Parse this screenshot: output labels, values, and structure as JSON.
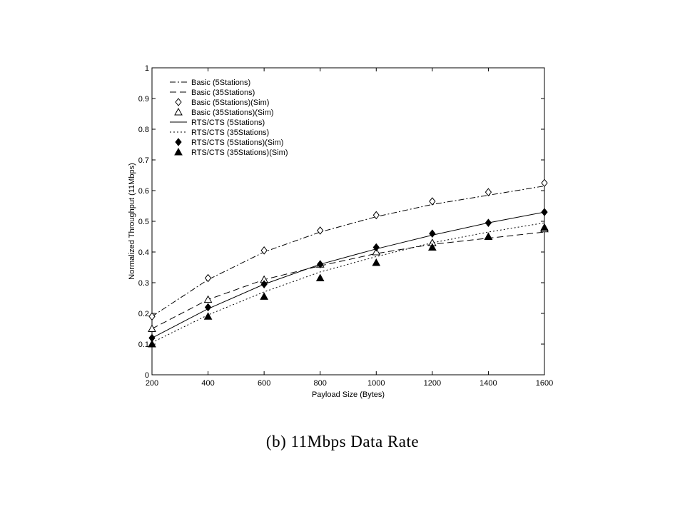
{
  "caption": "(b) 11Mbps Data Rate",
  "chart_data": {
    "type": "line",
    "title": "",
    "xlabel": "Payload Size (Bytes)",
    "ylabel": "Normalized Throughput (11Mbps)",
    "xlim": [
      200,
      1600
    ],
    "ylim": [
      0,
      1
    ],
    "x_ticks": [
      "200",
      "400",
      "600",
      "800",
      "1000",
      "1200",
      "1400",
      "1600"
    ],
    "y_ticks": [
      "0",
      "0.1",
      "0.2",
      "0.3",
      "0.4",
      "0.5",
      "0.6",
      "0.7",
      "0.8",
      "0.9",
      "1"
    ],
    "grid": false,
    "legend_position": "top-left",
    "x": [
      200,
      400,
      600,
      800,
      1000,
      1200,
      1400,
      1600
    ],
    "series": [
      {
        "name": "Basic (5Stations)",
        "style": "dashdot",
        "marker": "none",
        "values": [
          0.19,
          0.31,
          0.4,
          0.465,
          0.515,
          0.555,
          0.585,
          0.615
        ]
      },
      {
        "name": "Basic (35Stations)",
        "style": "dashed",
        "marker": "none",
        "values": [
          0.15,
          0.245,
          0.31,
          0.355,
          0.395,
          0.425,
          0.445,
          0.465
        ]
      },
      {
        "name": "Basic (5Stations)(Sim)",
        "style": "none",
        "marker": "open-diamond",
        "values": [
          0.19,
          0.315,
          0.405,
          0.47,
          0.52,
          0.565,
          0.595,
          0.625
        ]
      },
      {
        "name": "Basic (35Stations)(Sim)",
        "style": "none",
        "marker": "open-triangle",
        "values": [
          0.15,
          0.245,
          0.31,
          0.36,
          0.4,
          0.43,
          0.45,
          0.475
        ]
      },
      {
        "name": "RTS/CTS (5Stations)",
        "style": "solid",
        "marker": "none",
        "values": [
          0.12,
          0.215,
          0.295,
          0.36,
          0.41,
          0.455,
          0.495,
          0.53
        ]
      },
      {
        "name": "RTS/CTS (35Stations)",
        "style": "dotted",
        "marker": "none",
        "values": [
          0.105,
          0.195,
          0.27,
          0.335,
          0.385,
          0.43,
          0.465,
          0.495
        ]
      },
      {
        "name": "RTS/CTS (5Stations)(Sim)",
        "style": "none",
        "marker": "filled-diamond",
        "values": [
          0.12,
          0.22,
          0.295,
          0.36,
          0.415,
          0.46,
          0.495,
          0.53
        ]
      },
      {
        "name": "RTS/CTS (35Stations)(Sim)",
        "style": "none",
        "marker": "filled-triangle",
        "values": [
          0.1,
          0.19,
          0.255,
          0.315,
          0.365,
          0.415,
          0.45,
          0.48
        ]
      }
    ]
  }
}
